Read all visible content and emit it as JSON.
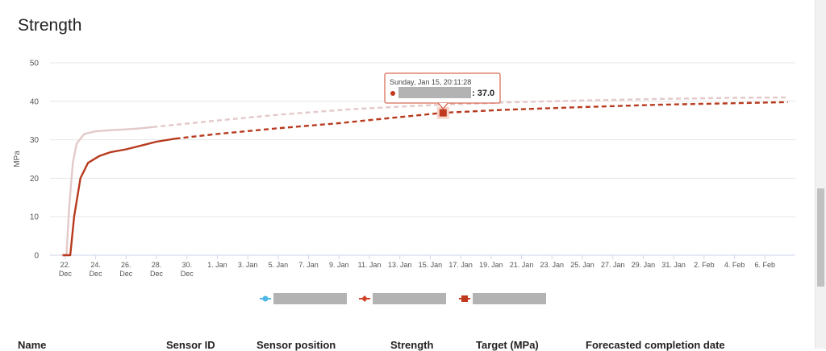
{
  "page": {
    "title": "Strength"
  },
  "chart_data": {
    "type": "line",
    "title": "",
    "ylabel": "MPa",
    "ylim": [
      0,
      50
    ],
    "yticks": [
      0,
      10,
      20,
      30,
      40,
      50
    ],
    "grid": true,
    "x_axis": {
      "min": "2022-12-21",
      "max": "2023-02-08",
      "tick_dates": [
        "2022-12-22",
        "2022-12-24",
        "2022-12-26",
        "2022-12-28",
        "2022-12-30",
        "2023-01-01",
        "2023-01-03",
        "2023-01-05",
        "2023-01-07",
        "2023-01-09",
        "2023-01-11",
        "2023-01-13",
        "2023-01-15",
        "2023-01-17",
        "2023-01-19",
        "2023-01-21",
        "2023-01-23",
        "2023-01-25",
        "2023-01-27",
        "2023-01-29",
        "2023-01-31",
        "2023-02-02",
        "2023-02-04",
        "2023-02-06"
      ],
      "tick_labels": [
        [
          "22.",
          "Dec"
        ],
        [
          "24.",
          "Dec"
        ],
        [
          "26.",
          "Dec"
        ],
        [
          "28.",
          "Dec"
        ],
        [
          "30.",
          "Dec"
        ],
        [
          "1. Jan"
        ],
        [
          "3. Jan"
        ],
        [
          "5. Jan"
        ],
        [
          "7. Jan"
        ],
        [
          "9. Jan"
        ],
        [
          "11. Jan"
        ],
        [
          "13. Jan"
        ],
        [
          "15. Jan"
        ],
        [
          "17. Jan"
        ],
        [
          "19. Jan"
        ],
        [
          "21. Jan"
        ],
        [
          "23. Jan"
        ],
        [
          "25. Jan"
        ],
        [
          "27. Jan"
        ],
        [
          "29. Jan"
        ],
        [
          "31. Jan"
        ],
        [
          "2. Feb"
        ],
        [
          "4. Feb"
        ],
        [
          "6. Feb"
        ]
      ]
    },
    "series": [
      {
        "color": "#e3c9ca",
        "marker": "circle",
        "legend_color": "#4db8e8",
        "measured": [
          [
            "2022-12-21 18:00",
            0
          ],
          [
            "2022-12-22 02:00",
            0
          ],
          [
            "2022-12-22 06:00",
            12
          ],
          [
            "2022-12-22 12:00",
            24
          ],
          [
            "2022-12-22 18:00",
            29
          ],
          [
            "2022-12-23 06:00",
            31.5
          ],
          [
            "2022-12-24 00:00",
            32.2
          ],
          [
            "2022-12-25 00:00",
            32.5
          ],
          [
            "2022-12-26 00:00",
            32.7
          ],
          [
            "2022-12-27 00:00",
            33
          ],
          [
            "2022-12-27 18:00",
            33.3
          ]
        ],
        "forecast": [
          [
            "2022-12-27 18:00",
            33.3
          ],
          [
            "2022-12-30 00:00",
            34.2
          ],
          [
            "2023-01-01 00:00",
            35
          ],
          [
            "2023-01-05 00:00",
            36.5
          ],
          [
            "2023-01-10 00:00",
            38
          ],
          [
            "2023-01-15 00:00",
            39
          ],
          [
            "2023-01-20 00:00",
            39.7
          ],
          [
            "2023-01-25 00:00",
            40.2
          ],
          [
            "2023-01-30 00:00",
            40.6
          ],
          [
            "2023-02-04 00:00",
            40.9
          ],
          [
            "2023-02-07 12:00",
            41
          ]
        ]
      },
      {
        "color": "#b83a1e",
        "marker": "diamond",
        "legend_color": "#d0452a",
        "measured": [
          [
            "2022-12-21 20:00",
            0
          ],
          [
            "2022-12-22 08:00",
            0
          ],
          [
            "2022-12-22 14:00",
            10
          ],
          [
            "2022-12-23 00:00",
            20
          ],
          [
            "2022-12-23 12:00",
            24
          ],
          [
            "2022-12-24 06:00",
            25.8
          ],
          [
            "2022-12-25 00:00",
            26.8
          ],
          [
            "2022-12-26 00:00",
            27.5
          ],
          [
            "2022-12-27 00:00",
            28.5
          ],
          [
            "2022-12-28 00:00",
            29.5
          ],
          [
            "2022-12-29 06:00",
            30.3
          ]
        ],
        "forecast": [
          [
            "2022-12-29 06:00",
            30.3
          ],
          [
            "2023-01-01 00:00",
            31.5
          ],
          [
            "2023-01-05 00:00",
            33
          ],
          [
            "2023-01-09 00:00",
            34.3
          ],
          [
            "2023-01-12 00:00",
            35.5
          ],
          [
            "2023-01-15 20:11",
            37
          ],
          [
            "2023-01-20 00:00",
            37.8
          ],
          [
            "2023-01-25 00:00",
            38.5
          ],
          [
            "2023-01-30 00:00",
            39.1
          ],
          [
            "2023-02-04 00:00",
            39.5
          ],
          [
            "2023-02-07 12:00",
            39.8
          ]
        ]
      }
    ],
    "tooltip": {
      "header": "Sunday, Jan 15, 20:11:28",
      "value": "37.0",
      "date": "2023-01-15 20:11",
      "y": 37
    },
    "legend": {
      "position": "bottom"
    }
  },
  "table": {
    "columns": [
      "Name",
      "Sensor ID",
      "Sensor position",
      "Strength",
      "Target (MPa)",
      "Forecasted completion date"
    ]
  }
}
